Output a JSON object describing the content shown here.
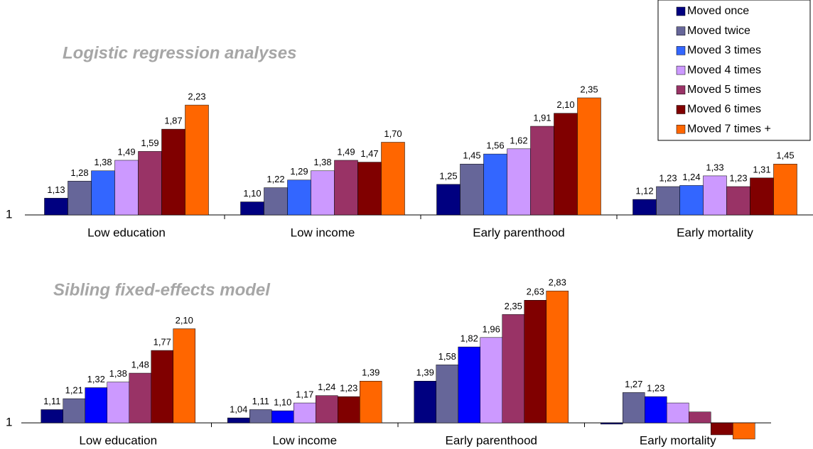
{
  "chart_data": [
    {
      "type": "bar",
      "title": "Logistic regression analyses",
      "log": true,
      "legend": "top-right",
      "categories": [
        "Low education",
        "Low income",
        "Early parenthood",
        "Early mortality"
      ],
      "ylim": [
        1,
        4.8
      ],
      "yticks": [
        1
      ],
      "series": [
        {
          "name": "Moved once",
          "color": "#000080",
          "values": [
            1.13,
            1.1,
            1.25,
            1.12
          ],
          "value_labels": [
            "1,13",
            "1,10",
            "1,25",
            "1,12"
          ]
        },
        {
          "name": "Moved twice",
          "color": "#666699",
          "values": [
            1.28,
            1.22,
            1.45,
            1.23
          ],
          "value_labels": [
            "1,28",
            "1,22",
            "1,45",
            "1,23"
          ]
        },
        {
          "name": "Moved 3 times",
          "color": "#3366ff",
          "values": [
            1.38,
            1.29,
            1.56,
            1.24
          ],
          "value_labels": [
            "1,38",
            "1,29",
            "1,56",
            "1,24"
          ]
        },
        {
          "name": "Moved 4 times",
          "color": "#cc99ff",
          "values": [
            1.49,
            1.38,
            1.62,
            1.33
          ],
          "value_labels": [
            "1,49",
            "1,38",
            "1,62",
            "1,33"
          ]
        },
        {
          "name": "Moved 5 times",
          "color": "#993366",
          "values": [
            1.59,
            1.49,
            1.91,
            1.23
          ],
          "value_labels": [
            "1,59",
            "1,49",
            "1,91",
            "1,23"
          ]
        },
        {
          "name": "Moved 6 times",
          "color": "#800000",
          "values": [
            1.87,
            1.47,
            2.1,
            1.31
          ],
          "value_labels": [
            "1,87",
            "1,47",
            "2,10",
            "1,31"
          ]
        },
        {
          "name": "Moved 7 times +",
          "color": "#ff6600",
          "values": [
            2.23,
            1.7,
            2.35,
            1.45
          ],
          "value_labels": [
            "2,23",
            "1,70",
            "2,35",
            "1,45"
          ]
        }
      ]
    },
    {
      "type": "bar",
      "title": "Sibling fixed-effects model",
      "log": true,
      "categories": [
        "Low education",
        "Low income",
        "Early parenthood",
        "Early mortality"
      ],
      "ylim": [
        0.875,
        4.19
      ],
      "yticks": [
        1
      ],
      "series": [
        {
          "color": "#000080",
          "values": [
            1.11,
            1.04,
            1.39,
            0.99
          ],
          "value_labels": [
            "1,11",
            "1,04",
            "1,39",
            null
          ]
        },
        {
          "color": "#666699",
          "values": [
            1.21,
            1.11,
            1.58,
            1.27
          ],
          "value_labels": [
            "1,21",
            "1,11",
            "1,58",
            "1,27"
          ]
        },
        {
          "color": "#0000ff",
          "values": [
            1.32,
            1.1,
            1.82,
            1.23
          ],
          "value_labels": [
            "1,32",
            "1,10",
            "1,82",
            "1,23"
          ]
        },
        {
          "color": "#cc99ff",
          "values": [
            1.38,
            1.17,
            1.96,
            1.17
          ],
          "value_labels": [
            "1,38",
            "1,17",
            "1,96",
            null
          ]
        },
        {
          "color": "#993366",
          "values": [
            1.48,
            1.24,
            2.35,
            1.09
          ],
          "value_labels": [
            "1,48",
            "1,24",
            "2,35",
            null
          ]
        },
        {
          "color": "#800000",
          "values": [
            1.77,
            1.23,
            2.63,
            0.91
          ],
          "value_labels": [
            "1,77",
            "1,23",
            "2,63",
            null
          ]
        },
        {
          "color": "#ff6600",
          "values": [
            2.1,
            1.39,
            2.83,
            0.88
          ],
          "value_labels": [
            "2,10",
            "1,39",
            "2,83",
            null
          ]
        }
      ]
    }
  ]
}
